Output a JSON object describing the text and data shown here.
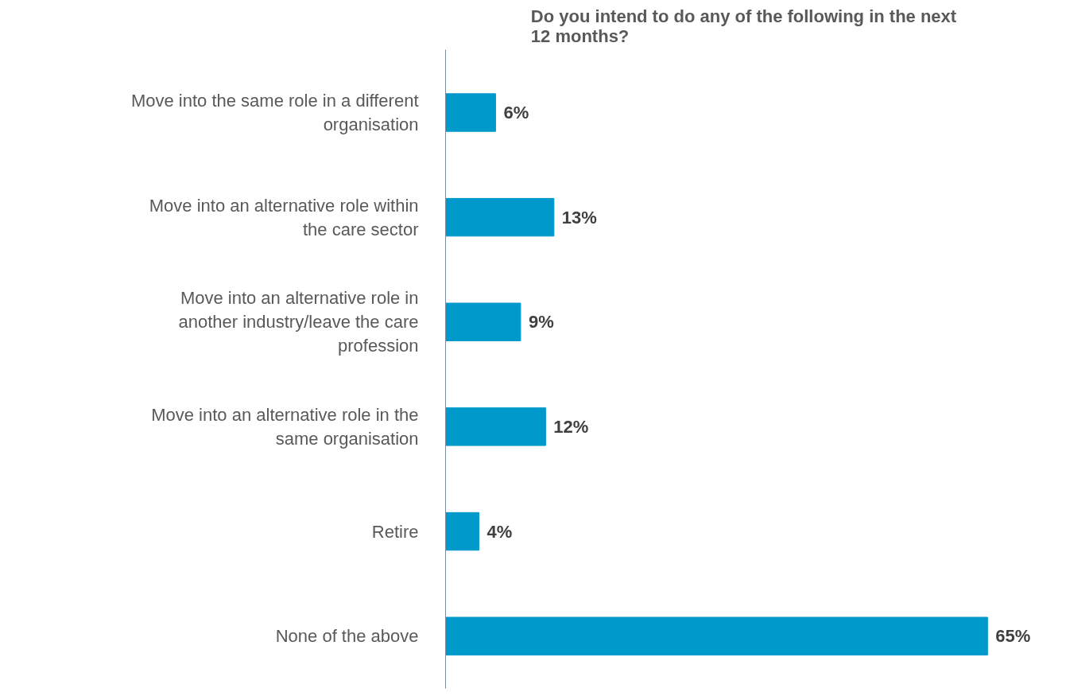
{
  "chart_data": {
    "type": "bar",
    "orientation": "horizontal",
    "title": "Do you intend to do any of the following in the next 12 months?",
    "categories": [
      "Move into the same role in a different organisation",
      "Move into an alternative role within the care sector",
      "Move into an alternative role in another industry/leave the care profession",
      "Move into an alternative role in the same organisation",
      "Retire",
      "None of the above"
    ],
    "values": [
      6,
      13,
      9,
      12,
      4,
      65
    ],
    "value_labels": [
      "6%",
      "13%",
      "9%",
      "12%",
      "4%",
      "65%"
    ],
    "color": "#0099cc",
    "tick_labels": "y",
    "grid": false
  }
}
